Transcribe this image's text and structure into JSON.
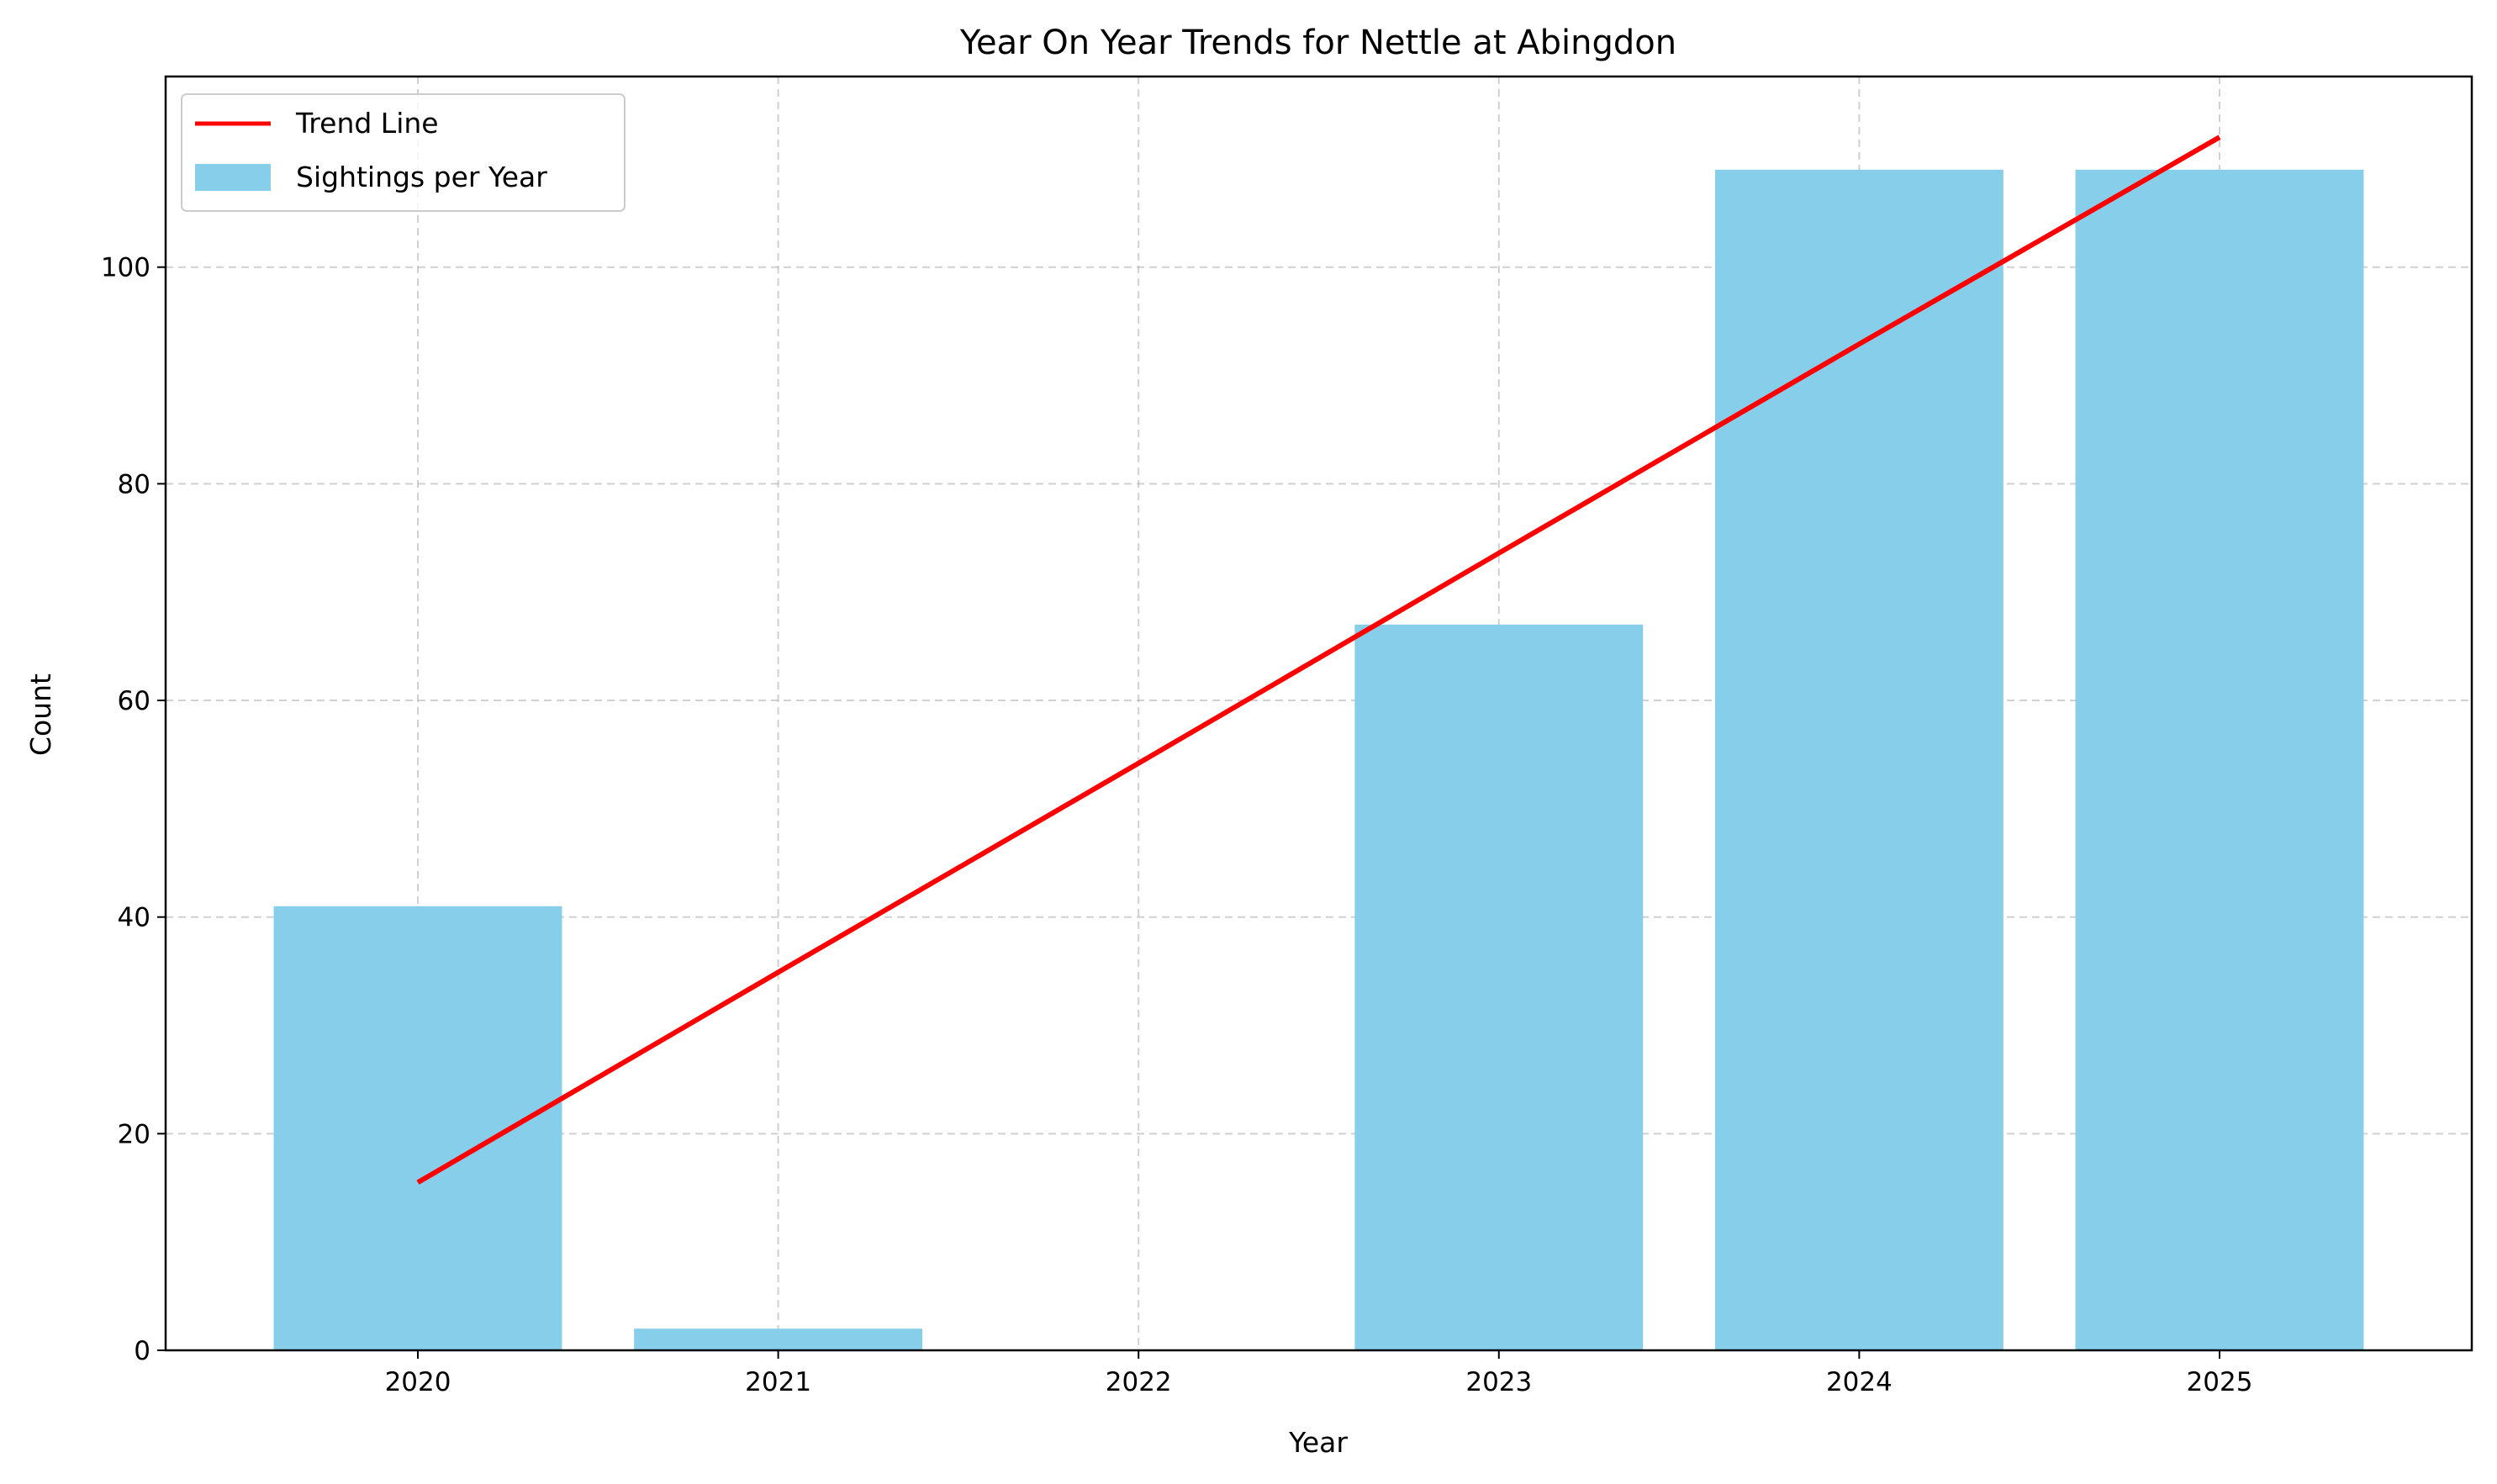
{
  "chart_data": {
    "type": "bar",
    "title": "Year On Year Trends for Nettle at Abingdon",
    "xlabel": "Year",
    "ylabel": "Count",
    "categories": [
      "2020",
      "2021",
      "2022",
      "2023",
      "2024",
      "2025"
    ],
    "series": [
      {
        "name": "Sightings per Year",
        "type": "bar",
        "color": "#87CEEB",
        "values": [
          41,
          2,
          0,
          67,
          109,
          109
        ]
      },
      {
        "name": "Trend Line",
        "type": "line",
        "color": "#FF0000",
        "values": [
          15.5,
          34.9,
          54.2,
          73.6,
          92.9,
          112.0
        ]
      }
    ],
    "yticks": [
      0,
      20,
      40,
      60,
      80,
      100
    ],
    "ylim": [
      0,
      117.6
    ],
    "grid": true,
    "legend_position": "top-left"
  }
}
